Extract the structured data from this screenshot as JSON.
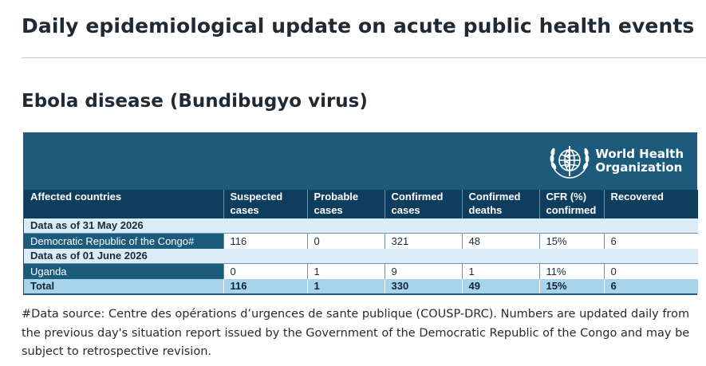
{
  "page": {
    "title": "Daily epidemiological update on acute public health events",
    "section_title": "Ebola disease (Bundibugyo virus)"
  },
  "logo": {
    "icon": "who-emblem-icon",
    "line1": "World Health",
    "line2": "Organization"
  },
  "table": {
    "columns": {
      "c0": [
        "Affected countries",
        ""
      ],
      "c1": [
        "Suspected",
        "cases"
      ],
      "c2": [
        "Probable",
        "cases"
      ],
      "c3": [
        "Confirmed",
        "cases"
      ],
      "c4": [
        "Confirmed",
        "deaths"
      ],
      "c5": [
        "CFR (%)",
        "confirmed"
      ],
      "c6": [
        "Recovered",
        ""
      ]
    },
    "groups": [
      {
        "date_label": "Data as of 31 May 2026",
        "row": [
          "Democratic Republic of the Congo#",
          "116",
          "0",
          "321",
          "48",
          "15%",
          "6"
        ]
      },
      {
        "date_label": "Data as of 01 June 2026",
        "row": [
          "Uganda",
          "0",
          "1",
          "9",
          "1",
          "11%",
          "0"
        ]
      }
    ],
    "total": [
      "Total",
      "116",
      "1",
      "330",
      "49",
      "15%",
      "6"
    ]
  },
  "footnote": "#Data source: Centre des opérations d’urgences de sante publique (COUSP-DRC). Numbers are updated daily from the previous day's situation report issued by the Government of the Democratic Republic of the Congo and may be subject to retrospective revision.",
  "colors": {
    "banner": "#1d5b7d",
    "header": "#0f3d5e",
    "date_row": "#daedf7",
    "total_row": "#a8d4eb"
  }
}
